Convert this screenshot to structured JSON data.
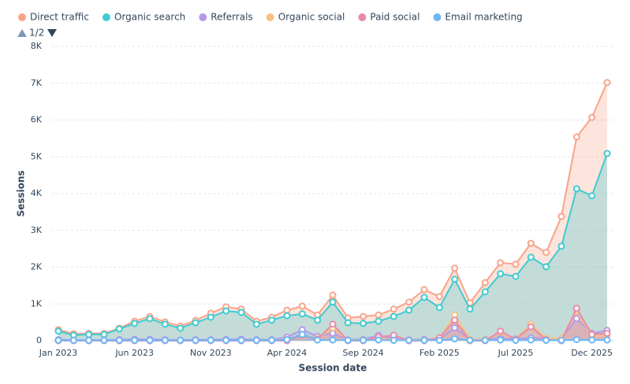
{
  "chart_data": {
    "type": "area",
    "legend_page": "1/2",
    "x_label": "Session date",
    "y_label": "Sessions",
    "categories": [
      "Jan 2023",
      null,
      null,
      null,
      null,
      "Jun 2023",
      null,
      null,
      null,
      null,
      "Nov 2023",
      null,
      null,
      null,
      null,
      "Apr 2024",
      null,
      null,
      null,
      null,
      "Sep 2024",
      null,
      null,
      null,
      null,
      "Feb 2025",
      null,
      null,
      null,
      null,
      "Jul 2025",
      null,
      null,
      null,
      null,
      "Dec 2025",
      null
    ],
    "ylim": [
      0,
      8000
    ],
    "yticks": [
      {
        "value": 0,
        "label": "0"
      },
      {
        "value": 1000,
        "label": "1K"
      },
      {
        "value": 2000,
        "label": "2K"
      },
      {
        "value": 3000,
        "label": "3K"
      },
      {
        "value": 4000,
        "label": "4K"
      },
      {
        "value": 5000,
        "label": "5K"
      },
      {
        "value": 6000,
        "label": "6K"
      },
      {
        "value": 7000,
        "label": "7K"
      },
      {
        "value": 8000,
        "label": "8K"
      }
    ],
    "grid": true,
    "series": [
      {
        "name": "Direct traffic",
        "color": "#f8a48a",
        "values": [
          300,
          190,
          200,
          200,
          340,
          530,
          660,
          510,
          400,
          550,
          750,
          920,
          860,
          530,
          640,
          830,
          940,
          700,
          1240,
          620,
          660,
          700,
          860,
          1050,
          1390,
          1200,
          1970,
          1030,
          1580,
          2120,
          2080,
          2650,
          2400,
          3380,
          5540,
          6070,
          7020
        ]
      },
      {
        "name": "Organic search",
        "color": "#3fcbd0",
        "values": [
          260,
          150,
          170,
          170,
          320,
          470,
          600,
          450,
          340,
          490,
          640,
          810,
          770,
          450,
          560,
          680,
          730,
          560,
          1050,
          490,
          470,
          530,
          660,
          830,
          1180,
          900,
          1670,
          860,
          1330,
          1820,
          1750,
          2270,
          2010,
          2570,
          4130,
          3940,
          5090
        ]
      },
      {
        "name": "Referrals",
        "color": "#b59ae8",
        "values": [
          30,
          20,
          20,
          20,
          30,
          40,
          40,
          30,
          20,
          30,
          30,
          40,
          40,
          30,
          30,
          100,
          300,
          120,
          200,
          30,
          40,
          150,
          60,
          30,
          40,
          40,
          350,
          40,
          40,
          60,
          50,
          80,
          60,
          60,
          600,
          200,
          280
        ]
      },
      {
        "name": "Organic social",
        "color": "#f7c27f",
        "values": [
          10,
          10,
          10,
          10,
          10,
          10,
          10,
          10,
          10,
          10,
          10,
          10,
          10,
          10,
          10,
          40,
          130,
          60,
          350,
          20,
          20,
          60,
          20,
          20,
          20,
          60,
          700,
          40,
          30,
          230,
          40,
          450,
          60,
          60,
          820,
          120,
          150
        ]
      },
      {
        "name": "Paid social",
        "color": "#ea8aa8",
        "values": [
          0,
          0,
          0,
          0,
          0,
          0,
          0,
          0,
          0,
          0,
          0,
          0,
          0,
          0,
          0,
          0,
          150,
          40,
          450,
          0,
          0,
          100,
          150,
          0,
          0,
          80,
          560,
          0,
          0,
          260,
          40,
          380,
          30,
          0,
          880,
          170,
          200
        ]
      },
      {
        "name": "Email marketing",
        "color": "#6db8f5",
        "values": [
          10,
          10,
          10,
          10,
          10,
          10,
          10,
          10,
          10,
          10,
          10,
          10,
          10,
          10,
          10,
          30,
          170,
          20,
          20,
          10,
          10,
          20,
          10,
          10,
          10,
          10,
          50,
          10,
          10,
          20,
          10,
          20,
          10,
          10,
          30,
          20,
          20
        ]
      }
    ]
  }
}
